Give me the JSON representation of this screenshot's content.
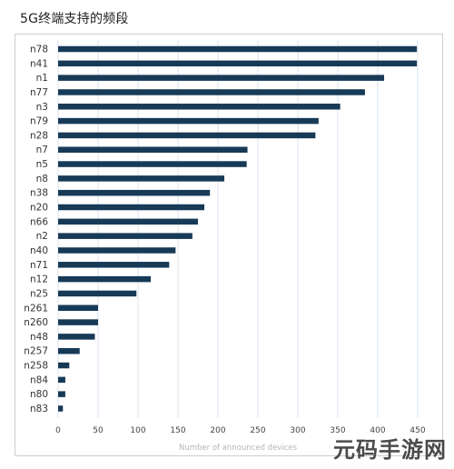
{
  "page": {
    "title": "5G终端支持的频段",
    "watermark": "元码手游网"
  },
  "chart_data": {
    "type": "bar",
    "orientation": "horizontal",
    "title": "5G终端支持的频段",
    "xlabel": "Number of announced devices",
    "ylabel": "",
    "xlim": [
      0,
      450
    ],
    "xticks": [
      0,
      50,
      100,
      150,
      200,
      250,
      300,
      350,
      400,
      450
    ],
    "grid": true,
    "legend": "none",
    "bar_color": "#173a57",
    "grid_color": "#d7e3ee",
    "categories": [
      "n78",
      "n41",
      "n1",
      "n77",
      "n3",
      "n79",
      "n28",
      "n7",
      "n5",
      "n8",
      "n38",
      "n20",
      "n66",
      "n2",
      "n40",
      "n71",
      "n12",
      "n25",
      "n261",
      "n260",
      "n48",
      "n257",
      "n258",
      "n84",
      "n80",
      "n83"
    ],
    "values": [
      449,
      449,
      408,
      384,
      353,
      326,
      322,
      237,
      236,
      208,
      190,
      183,
      175,
      168,
      147,
      139,
      116,
      98,
      50,
      50,
      46,
      27,
      14,
      9,
      9,
      6
    ]
  }
}
